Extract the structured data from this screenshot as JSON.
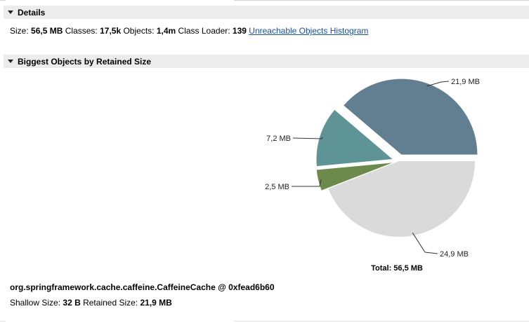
{
  "details": {
    "header": "Details",
    "size_label": "Size:",
    "size_value": "56,5 MB",
    "classes_label": "Classes:",
    "classes_value": "17,5k",
    "objects_label": "Objects:",
    "objects_value": "1,4m",
    "classloader_label": "Class Loader:",
    "classloader_value": "139",
    "histogram_link": "Unreachable Objects Histogram"
  },
  "biggest": {
    "header": "Biggest Objects by Retained Size"
  },
  "chart_data": {
    "type": "pie",
    "slices": [
      {
        "label": "21,9 MB",
        "value": 21.9,
        "color": "#617f90",
        "exploded": true
      },
      {
        "label": "7,2 MB",
        "value": 7.2,
        "color": "#5f9496",
        "exploded": true
      },
      {
        "label": "2,5 MB",
        "value": 2.5,
        "color": "#6c8a4b",
        "exploded": true
      },
      {
        "label": "24,9 MB",
        "value": 24.9,
        "color": "#dadada",
        "exploded": false
      }
    ],
    "total_label": "Total: 56,5 MB"
  },
  "selected_object": {
    "name": "org.springframework.cache.caffeine.CaffeineCache @ 0xfead6b60",
    "shallow_label": "Shallow Size:",
    "shallow_value": "32 B",
    "retained_label": "Retained Size:",
    "retained_value": "21,9 MB"
  }
}
